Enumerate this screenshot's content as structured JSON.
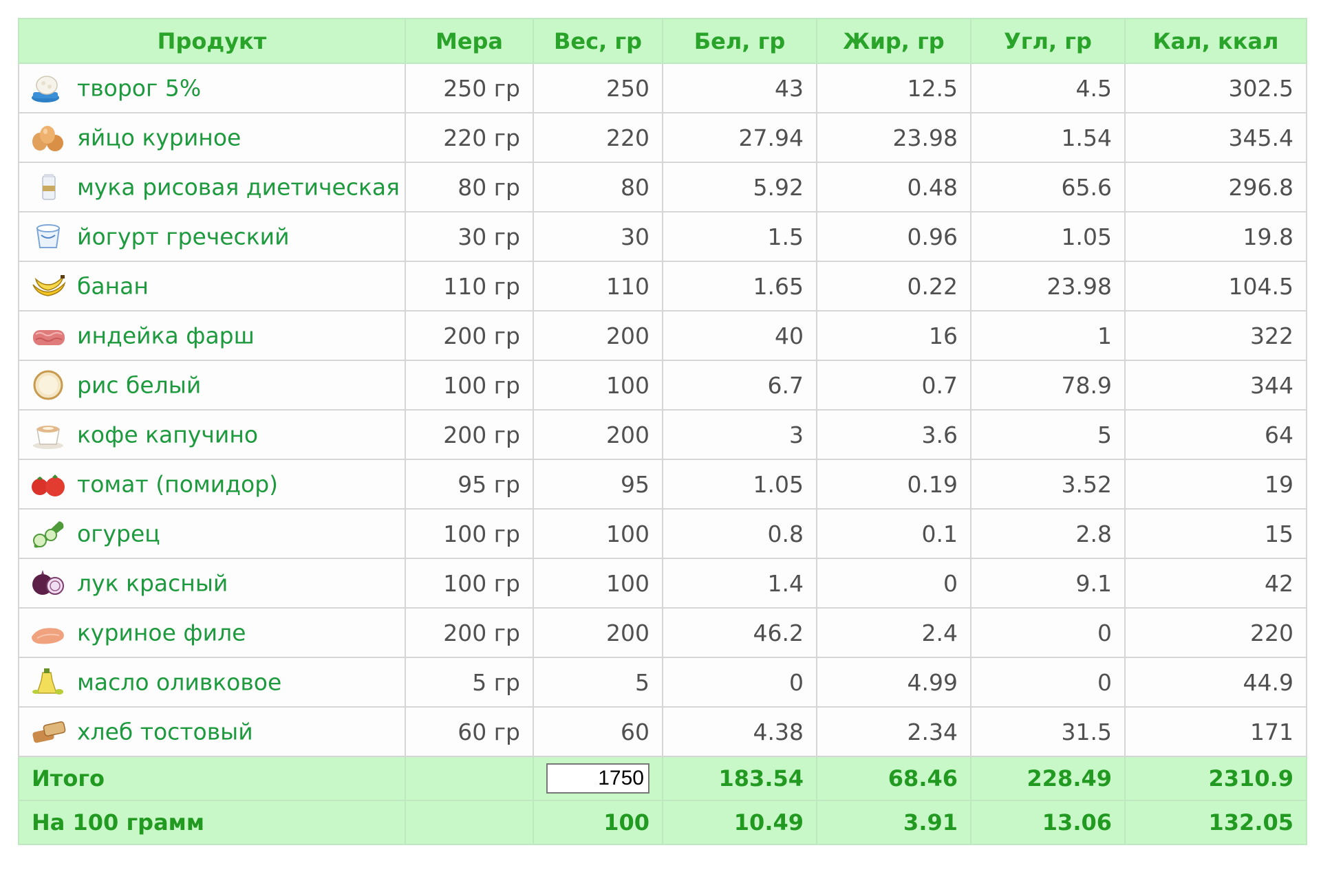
{
  "headers": [
    "Продукт",
    "Мера",
    "Вес, гр",
    "Бел, гр",
    "Жир, гр",
    "Угл, гр",
    "Кал, ккал"
  ],
  "rows": [
    {
      "name": "творог 5%",
      "measure": "250 гр",
      "weight": "250",
      "protein": "43",
      "fat": "12.5",
      "carbs": "4.5",
      "kcal": "302.5",
      "icon": "cottage-cheese-icon"
    },
    {
      "name": "яйцо куриное",
      "measure": "220 гр",
      "weight": "220",
      "protein": "27.94",
      "fat": "23.98",
      "carbs": "1.54",
      "kcal": "345.4",
      "icon": "eggs-icon"
    },
    {
      "name": "мука рисовая диетическая",
      "measure": "80 гр",
      "weight": "80",
      "protein": "5.92",
      "fat": "0.48",
      "carbs": "65.6",
      "kcal": "296.8",
      "icon": "flour-pack-icon"
    },
    {
      "name": "йогурт греческий",
      "measure": "30 гр",
      "weight": "30",
      "protein": "1.5",
      "fat": "0.96",
      "carbs": "1.05",
      "kcal": "19.8",
      "icon": "yogurt-cup-icon"
    },
    {
      "name": "банан",
      "measure": "110 гр",
      "weight": "110",
      "protein": "1.65",
      "fat": "0.22",
      "carbs": "23.98",
      "kcal": "104.5",
      "icon": "banana-icon"
    },
    {
      "name": "индейка фарш",
      "measure": "200 гр",
      "weight": "200",
      "protein": "40",
      "fat": "16",
      "carbs": "1",
      "kcal": "322",
      "icon": "minced-meat-icon"
    },
    {
      "name": "рис белый",
      "measure": "100 гр",
      "weight": "100",
      "protein": "6.7",
      "fat": "0.7",
      "carbs": "78.9",
      "kcal": "344",
      "icon": "rice-icon"
    },
    {
      "name": "кофе капучино",
      "measure": "200 гр",
      "weight": "200",
      "protein": "3",
      "fat": "3.6",
      "carbs": "5",
      "kcal": "64",
      "icon": "coffee-cup-icon"
    },
    {
      "name": "томат (помидор)",
      "measure": "95 гр",
      "weight": "95",
      "protein": "1.05",
      "fat": "0.19",
      "carbs": "3.52",
      "kcal": "19",
      "icon": "tomato-icon"
    },
    {
      "name": "огурец",
      "measure": "100 гр",
      "weight": "100",
      "protein": "0.8",
      "fat": "0.1",
      "carbs": "2.8",
      "kcal": "15",
      "icon": "cucumber-icon"
    },
    {
      "name": "лук красный",
      "measure": "100 гр",
      "weight": "100",
      "protein": "1.4",
      "fat": "0",
      "carbs": "9.1",
      "kcal": "42",
      "icon": "red-onion-icon"
    },
    {
      "name": "куриное филе",
      "measure": "200 гр",
      "weight": "200",
      "protein": "46.2",
      "fat": "2.4",
      "carbs": "0",
      "kcal": "220",
      "icon": "chicken-fillet-icon"
    },
    {
      "name": "масло оливковое",
      "measure": "5 гр",
      "weight": "5",
      "protein": "0",
      "fat": "4.99",
      "carbs": "0",
      "kcal": "44.9",
      "icon": "olive-oil-icon"
    },
    {
      "name": "хлеб тостовый",
      "measure": "60 гр",
      "weight": "60",
      "protein": "4.38",
      "fat": "2.34",
      "carbs": "31.5",
      "kcal": "171",
      "icon": "toast-bread-icon"
    }
  ],
  "totals": {
    "label": "Итого",
    "weight": "1750",
    "protein": "183.54",
    "fat": "68.46",
    "carbs": "228.49",
    "kcal": "2310.9"
  },
  "per100": {
    "label": "На 100 грамм",
    "weight": "100",
    "protein": "10.49",
    "fat": "3.91",
    "carbs": "13.06",
    "kcal": "132.05"
  },
  "colors": {
    "header_bg": "#c8f8c8",
    "header_text": "#2aa32a",
    "product_text": "#1e9a3e",
    "value_text": "#505050",
    "grid": "#d6d6d6"
  }
}
